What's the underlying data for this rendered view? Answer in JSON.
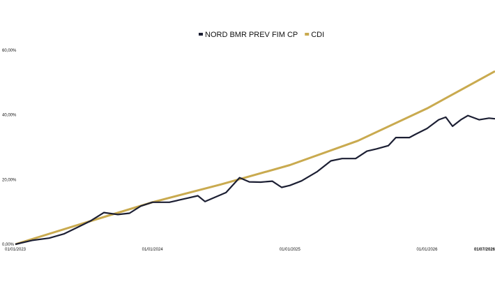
{
  "chart_data": {
    "type": "line",
    "title": "",
    "xlabel": "",
    "ylabel": "",
    "ylim": [
      0,
      60
    ],
    "y_ticks": [
      "0,00%",
      "20,00%",
      "40,00%",
      "60,00%"
    ],
    "y_tick_values": [
      0,
      20,
      40,
      60
    ],
    "x_ticks": [
      "01/01/2023",
      "01/01/2024",
      "01/01/2025",
      "01/01/2026",
      "01/07/2026"
    ],
    "x_tick_values": [
      "2023-01-01",
      "2024-01-01",
      "2025-01-01",
      "2026-01-01",
      "2026-07-01"
    ],
    "xlim": [
      "2023-01-01",
      "2026-07-01"
    ],
    "grid": false,
    "legend_position": "top-center",
    "series": [
      {
        "name": "NORD BMR PREV FIM CP",
        "color": "#1c1f33",
        "points": [
          [
            "2023-01-01",
            0.0
          ],
          [
            "2023-02-15",
            1.2
          ],
          [
            "2023-04-01",
            1.9
          ],
          [
            "2023-05-10",
            3.2
          ],
          [
            "2023-06-15",
            5.2
          ],
          [
            "2023-07-20",
            7.2
          ],
          [
            "2023-08-25",
            9.8
          ],
          [
            "2023-10-01",
            9.2
          ],
          [
            "2023-11-01",
            9.6
          ],
          [
            "2023-12-01",
            11.8
          ],
          [
            "2024-01-01",
            13.0
          ],
          [
            "2024-02-15",
            13.0
          ],
          [
            "2024-04-01",
            14.2
          ],
          [
            "2024-05-01",
            15.0
          ],
          [
            "2024-05-20",
            13.2
          ],
          [
            "2024-06-15",
            14.5
          ],
          [
            "2024-07-15",
            16.0
          ],
          [
            "2024-08-20",
            20.6
          ],
          [
            "2024-09-15",
            19.3
          ],
          [
            "2024-10-15",
            19.2
          ],
          [
            "2024-11-15",
            19.5
          ],
          [
            "2024-12-10",
            17.6
          ],
          [
            "2025-01-01",
            18.2
          ],
          [
            "2025-02-01",
            19.6
          ],
          [
            "2025-03-15",
            22.5
          ],
          [
            "2025-04-20",
            25.8
          ],
          [
            "2025-05-20",
            26.5
          ],
          [
            "2025-06-25",
            26.5
          ],
          [
            "2025-07-25",
            28.8
          ],
          [
            "2025-08-20",
            29.5
          ],
          [
            "2025-09-20",
            30.5
          ],
          [
            "2025-10-10",
            33.0
          ],
          [
            "2025-11-15",
            33.0
          ],
          [
            "2025-12-01",
            34.0
          ],
          [
            "2026-01-01",
            35.8
          ],
          [
            "2026-02-01",
            38.5
          ],
          [
            "2026-02-20",
            39.3
          ],
          [
            "2026-03-10",
            36.5
          ],
          [
            "2026-04-01",
            38.5
          ],
          [
            "2026-04-20",
            39.8
          ],
          [
            "2026-05-20",
            38.5
          ],
          [
            "2026-06-15",
            39.0
          ],
          [
            "2026-07-01",
            38.8
          ]
        ]
      },
      {
        "name": "CDI",
        "color": "#c9aa4f",
        "points": [
          [
            "2023-01-01",
            0.0
          ],
          [
            "2023-07-01",
            6.5
          ],
          [
            "2024-01-01",
            13.0
          ],
          [
            "2024-07-01",
            18.5
          ],
          [
            "2025-01-01",
            24.5
          ],
          [
            "2025-07-01",
            32.0
          ],
          [
            "2026-01-01",
            42.0
          ],
          [
            "2026-07-01",
            53.5
          ]
        ]
      }
    ]
  }
}
